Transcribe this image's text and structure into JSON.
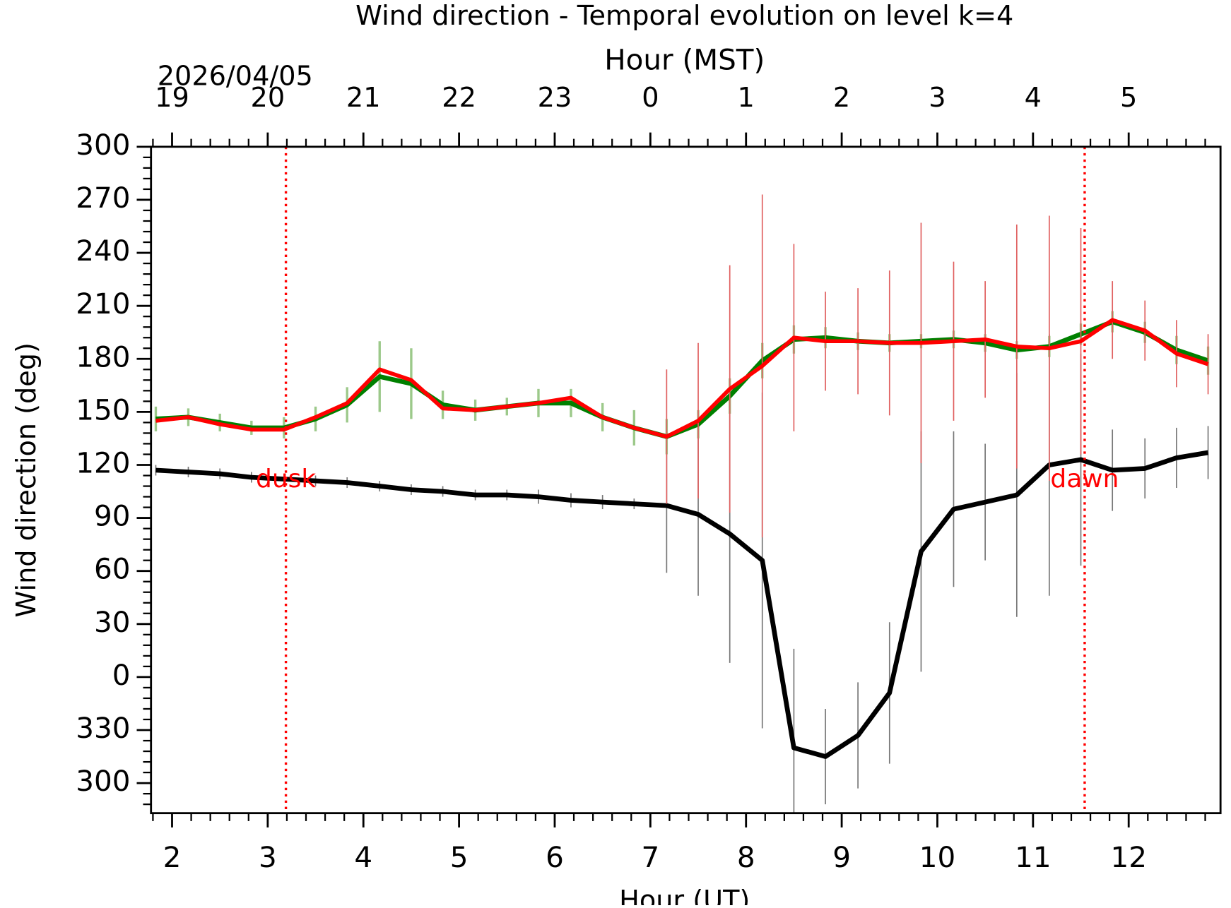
{
  "chart_data": {
    "type": "line",
    "title": "Wind direction - Temporal evolution on level k=4",
    "xlabel": "Hour (UT)",
    "x2label": "Hour (MST)",
    "ylabel": "Wind direction (deg)",
    "date_label": "2026/04/05",
    "xlim": [
      1.78,
      12.96
    ],
    "xticks": [
      2,
      3,
      4,
      5,
      6,
      7,
      8,
      9,
      10,
      11,
      12
    ],
    "x2ticks": [
      {
        "value": 2,
        "label": "19"
      },
      {
        "value": 3,
        "label": "20"
      },
      {
        "value": 4,
        "label": "21"
      },
      {
        "value": 5,
        "label": "22"
      },
      {
        "value": 6,
        "label": "23"
      },
      {
        "value": 7,
        "label": "0"
      },
      {
        "value": 8,
        "label": "1"
      },
      {
        "value": 9,
        "label": "2"
      },
      {
        "value": 10,
        "label": "3"
      },
      {
        "value": 11,
        "label": "4"
      },
      {
        "value": 12,
        "label": "5"
      }
    ],
    "ylim": [
      -77,
      300
    ],
    "yticks": [
      300,
      270,
      240,
      210,
      180,
      150,
      120,
      90,
      60,
      30,
      0,
      {
        "value": -30,
        "label": "330"
      },
      {
        "value": -60,
        "label": "300"
      }
    ],
    "x": [
      1.83,
      2.17,
      2.5,
      2.83,
      3.17,
      3.5,
      3.83,
      4.17,
      4.5,
      4.83,
      5.17,
      5.5,
      5.83,
      6.17,
      6.5,
      6.83,
      7.17,
      7.5,
      7.83,
      8.17,
      8.5,
      8.83,
      9.17,
      9.5,
      9.83,
      10.17,
      10.5,
      10.83,
      11.17,
      11.5,
      11.83,
      12.17,
      12.5,
      12.83
    ],
    "series": [
      {
        "color": "#000000",
        "error_color": "#777777",
        "width": 6,
        "values": [
          117,
          116,
          115,
          113,
          112,
          111,
          110,
          108,
          106,
          105,
          103,
          103,
          102,
          100,
          99,
          98,
          97,
          92,
          81,
          66,
          -40,
          -45,
          -33,
          -9,
          71,
          95,
          99,
          103,
          120,
          123,
          117,
          118,
          124,
          127
        ],
        "errors": [
          3,
          3,
          3,
          3,
          3,
          3,
          3,
          3,
          3,
          3,
          3,
          3,
          4,
          4,
          4,
          3,
          38,
          46,
          73,
          95,
          56,
          27,
          30,
          40,
          68,
          44,
          33,
          69,
          74,
          60,
          23,
          17,
          17,
          15
        ]
      },
      {
        "color": "#008000",
        "error_color": "#9cc98a",
        "width": 6,
        "values": [
          146,
          147,
          144,
          141,
          141,
          146,
          154,
          170,
          166,
          154,
          151,
          153,
          155,
          155,
          147,
          141,
          136,
          143,
          159,
          179,
          191,
          192,
          190,
          189,
          190,
          191,
          189,
          185,
          187,
          194,
          201,
          195,
          185,
          179
        ],
        "errors": [
          7,
          5,
          5,
          4,
          6,
          7,
          10,
          20,
          20,
          8,
          6,
          5,
          8,
          8,
          8,
          10,
          10,
          8,
          10,
          10,
          8,
          6,
          5,
          5,
          4,
          5,
          5,
          5,
          6,
          6,
          6,
          6,
          8,
          8
        ]
      },
      {
        "color": "#ff0000",
        "error_color": "#e06060",
        "width": 5,
        "values": [
          145,
          147,
          143,
          140,
          140,
          147,
          155,
          174,
          168,
          152,
          151,
          153,
          155,
          158,
          147,
          141,
          136,
          145,
          163,
          176,
          192,
          190,
          190,
          189,
          189,
          190,
          191,
          187,
          186,
          190,
          202,
          196,
          183,
          177
        ],
        "errors": [
          null,
          null,
          null,
          null,
          null,
          null,
          null,
          null,
          null,
          null,
          null,
          null,
          null,
          null,
          null,
          null,
          38,
          44,
          70,
          97,
          53,
          28,
          30,
          41,
          68,
          45,
          33,
          69,
          75,
          64,
          22,
          17,
          19,
          17
        ]
      }
    ],
    "vlines": [
      {
        "x": 3.19,
        "label": "dusk",
        "color": "#ff0000"
      },
      {
        "x": 11.54,
        "label": "dawn",
        "color": "#ff0000"
      }
    ]
  }
}
